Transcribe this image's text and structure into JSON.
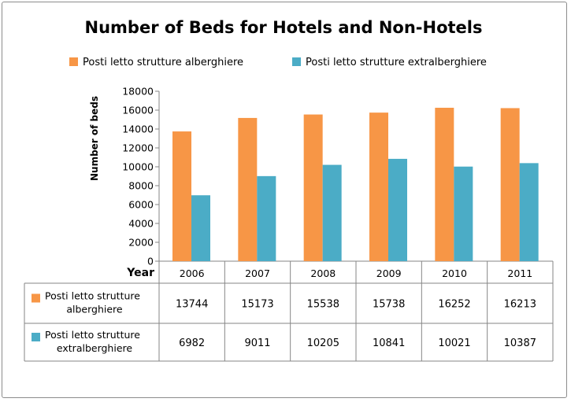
{
  "chart_data": {
    "type": "bar",
    "title": "Number of Beds for Hotels and Non-Hotels",
    "xlabel": "Year",
    "ylabel": "Number of beds",
    "categories": [
      "2006",
      "2007",
      "2008",
      "2009",
      "2010",
      "2011"
    ],
    "series": [
      {
        "name": "Posti letto strutture alberghiere",
        "name_lines": [
          "Posti letto strutture",
          "alberghiere"
        ],
        "color": "#F79646",
        "values": [
          13744,
          15173,
          15538,
          15738,
          16252,
          16213
        ]
      },
      {
        "name": "Posti letto strutture extralberghiere",
        "name_lines": [
          "Posti letto strutture",
          "extralberghiere"
        ],
        "color": "#4BACC6",
        "values": [
          6982,
          9011,
          10205,
          10841,
          10021,
          10387
        ]
      }
    ],
    "ylim": [
      0,
      18000
    ],
    "yticks": [
      0,
      2000,
      4000,
      6000,
      8000,
      10000,
      12000,
      14000,
      16000,
      18000
    ],
    "grid": false,
    "legend": "top",
    "data_table": true
  }
}
